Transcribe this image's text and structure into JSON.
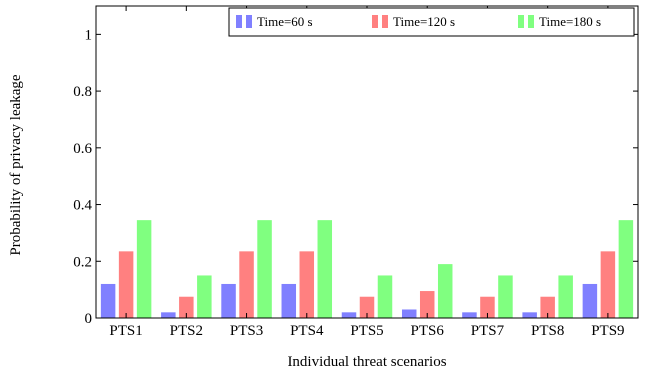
{
  "chart_data": {
    "type": "bar",
    "title": "",
    "xlabel": "Individual threat scenarios",
    "ylabel": "Probability of privacy leakage",
    "categories": [
      "PTS1",
      "PTS2",
      "PTS3",
      "PTS4",
      "PTS5",
      "PTS6",
      "PTS7",
      "PTS8",
      "PTS9"
    ],
    "series": [
      {
        "name": "Time=60 s",
        "color": "#8080ff",
        "values": [
          0.12,
          0.02,
          0.12,
          0.12,
          0.02,
          0.03,
          0.02,
          0.02,
          0.12
        ]
      },
      {
        "name": "Time=120 s",
        "color": "#ff8080",
        "values": [
          0.235,
          0.075,
          0.235,
          0.235,
          0.075,
          0.095,
          0.075,
          0.075,
          0.235
        ]
      },
      {
        "name": "Time=180 s",
        "color": "#80ff80",
        "values": [
          0.345,
          0.15,
          0.345,
          0.345,
          0.15,
          0.19,
          0.15,
          0.15,
          0.345
        ]
      }
    ],
    "ylim": [
      0,
      1.1
    ],
    "yticks": [
      0,
      0.2,
      0.4,
      0.6,
      0.8,
      1
    ],
    "ytick_labels": [
      "0",
      "0.2",
      "0.4",
      "0.6",
      "0.8",
      "1"
    ],
    "grid": false,
    "legend_position": "top-right"
  }
}
